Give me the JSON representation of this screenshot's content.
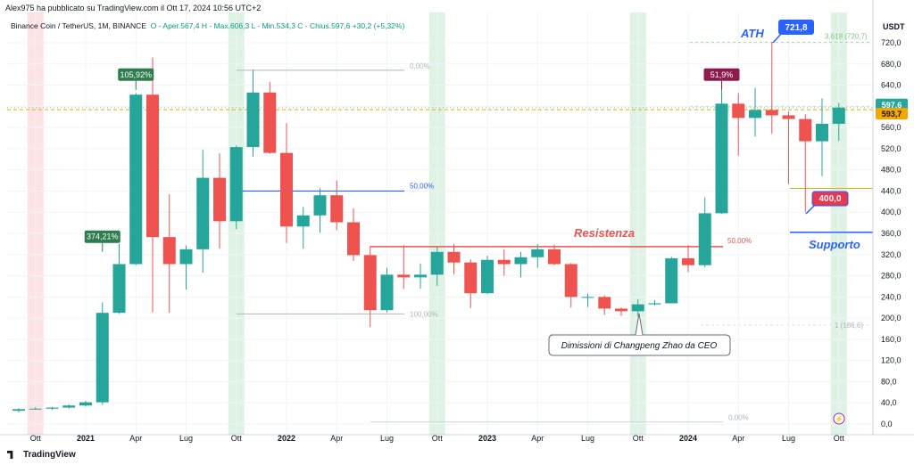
{
  "header": {
    "published_by": "Alex975 ha pubblicato su TradingView.com il Ott 17, 2024 10:56 UTC+2",
    "symbol": "Binance Coin / TetherUS, 1M, BINANCE",
    "ohlc_line": "O - Aper.567,4  H - Max.606,3  L - Min.534,3  C - Chius.597,6  +30,2 (+5,32%)",
    "currency": "USDT"
  },
  "brand": "TradingView",
  "colors": {
    "up": "#26a69a",
    "down": "#ef5350",
    "blue": "#2962ff",
    "green_band": "#dff3e4",
    "red_band": "#fde3e3"
  },
  "chart_data": {
    "type": "candlestick",
    "timeframe": "1M",
    "ylim": [
      0,
      760
    ],
    "y_ticks": [
      0,
      40,
      80,
      120,
      160,
      200,
      240,
      280,
      320,
      360,
      400,
      440,
      480,
      520,
      560,
      600,
      640,
      680,
      720
    ],
    "y_tick_labels": [
      "0,0",
      "40,0",
      "80,0",
      "120,0",
      "160,0",
      "200,0",
      "240,0",
      "280,0",
      "320,0",
      "360,0",
      "400,0",
      "440,0",
      "480,0",
      "520,0",
      "560,0",
      "600,0",
      "640,0",
      "680,0",
      "720,0"
    ],
    "x_ticks": [
      {
        "i": 1,
        "label": "Ott"
      },
      {
        "i": 4,
        "label": "2021"
      },
      {
        "i": 7,
        "label": "Apr"
      },
      {
        "i": 10,
        "label": "Lug"
      },
      {
        "i": 13,
        "label": "Ott"
      },
      {
        "i": 16,
        "label": "2022"
      },
      {
        "i": 19,
        "label": "Apr"
      },
      {
        "i": 22,
        "label": "Lug"
      },
      {
        "i": 25,
        "label": "Ott"
      },
      {
        "i": 28,
        "label": "2023"
      },
      {
        "i": 31,
        "label": "Apr"
      },
      {
        "i": 34,
        "label": "Lug"
      },
      {
        "i": 37,
        "label": "Ott"
      },
      {
        "i": 40,
        "label": "2024"
      },
      {
        "i": 43,
        "label": "Apr"
      },
      {
        "i": 46,
        "label": "Lug"
      },
      {
        "i": 49,
        "label": "Ott"
      }
    ],
    "candles": [
      {
        "o": 25,
        "h": 30,
        "l": 22,
        "c": 28
      },
      {
        "o": 28,
        "h": 32,
        "l": 27,
        "c": 29
      },
      {
        "o": 29,
        "h": 32,
        "l": 27,
        "c": 31
      },
      {
        "o": 31,
        "h": 37,
        "l": 29,
        "c": 35
      },
      {
        "o": 35,
        "h": 44,
        "l": 33,
        "c": 41
      },
      {
        "o": 41,
        "h": 230,
        "l": 36,
        "c": 210
      },
      {
        "o": 210,
        "h": 340,
        "l": 208,
        "c": 302
      },
      {
        "o": 302,
        "h": 625,
        "l": 300,
        "c": 622
      },
      {
        "o": 622,
        "h": 692,
        "l": 211,
        "c": 353
      },
      {
        "o": 353,
        "h": 434,
        "l": 210,
        "c": 302
      },
      {
        "o": 302,
        "h": 337,
        "l": 254,
        "c": 330
      },
      {
        "o": 330,
        "h": 518,
        "l": 286,
        "c": 465
      },
      {
        "o": 465,
        "h": 511,
        "l": 331,
        "c": 383
      },
      {
        "o": 383,
        "h": 526,
        "l": 368,
        "c": 523
      },
      {
        "o": 523,
        "h": 669,
        "l": 505,
        "c": 626
      },
      {
        "o": 626,
        "h": 646,
        "l": 510,
        "c": 512
      },
      {
        "o": 512,
        "h": 568,
        "l": 342,
        "c": 373
      },
      {
        "o": 373,
        "h": 410,
        "l": 331,
        "c": 394
      },
      {
        "o": 394,
        "h": 445,
        "l": 361,
        "c": 432
      },
      {
        "o": 432,
        "h": 460,
        "l": 366,
        "c": 381
      },
      {
        "o": 381,
        "h": 407,
        "l": 308,
        "c": 319
      },
      {
        "o": 319,
        "h": 336,
        "l": 183,
        "c": 215
      },
      {
        "o": 215,
        "h": 295,
        "l": 211,
        "c": 282
      },
      {
        "o": 282,
        "h": 338,
        "l": 255,
        "c": 277
      },
      {
        "o": 277,
        "h": 303,
        "l": 256,
        "c": 282
      },
      {
        "o": 282,
        "h": 334,
        "l": 261,
        "c": 325
      },
      {
        "o": 325,
        "h": 340,
        "l": 283,
        "c": 305
      },
      {
        "o": 305,
        "h": 311,
        "l": 219,
        "c": 247
      },
      {
        "o": 247,
        "h": 318,
        "l": 245,
        "c": 310
      },
      {
        "o": 310,
        "h": 330,
        "l": 280,
        "c": 302
      },
      {
        "o": 302,
        "h": 325,
        "l": 277,
        "c": 315
      },
      {
        "o": 315,
        "h": 340,
        "l": 295,
        "c": 330
      },
      {
        "o": 330,
        "h": 339,
        "l": 300,
        "c": 302
      },
      {
        "o": 302,
        "h": 304,
        "l": 220,
        "c": 240
      },
      {
        "o": 240,
        "h": 246,
        "l": 221,
        "c": 240
      },
      {
        "o": 240,
        "h": 243,
        "l": 206,
        "c": 218
      },
      {
        "o": 218,
        "h": 220,
        "l": 204,
        "c": 213
      },
      {
        "o": 213,
        "h": 236,
        "l": 203,
        "c": 226
      },
      {
        "o": 226,
        "h": 234,
        "l": 224,
        "c": 228
      },
      {
        "o": 228,
        "h": 316,
        "l": 228,
        "c": 313
      },
      {
        "o": 313,
        "h": 338,
        "l": 287,
        "c": 300
      },
      {
        "o": 300,
        "h": 428,
        "l": 296,
        "c": 398
      },
      {
        "o": 398,
        "h": 645,
        "l": 397,
        "c": 605
      },
      {
        "o": 605,
        "h": 625,
        "l": 507,
        "c": 578
      },
      {
        "o": 578,
        "h": 635,
        "l": 543,
        "c": 593
      },
      {
        "o": 593,
        "h": 721.8,
        "l": 548,
        "c": 583
      },
      {
        "o": 583,
        "h": 590,
        "l": 453,
        "c": 576
      },
      {
        "o": 576,
        "h": 585,
        "l": 400,
        "c": 534
      },
      {
        "o": 534,
        "h": 615,
        "l": 468,
        "c": 567
      },
      {
        "o": 567,
        "h": 606.3,
        "l": 534.3,
        "c": 597.6
      }
    ],
    "bands": [
      {
        "i": 1,
        "color": "red"
      },
      {
        "i": 13,
        "color": "green"
      },
      {
        "i": 25,
        "color": "green"
      },
      {
        "i": 37,
        "color": "green"
      },
      {
        "i": 49,
        "color": "green"
      }
    ],
    "price_labels": {
      "last": {
        "value": "597,6",
        "price": 597.6,
        "color": "#26a69a"
      },
      "orange": {
        "value": "593,7",
        "price": 593.7,
        "color": "#f7a600"
      }
    },
    "horizontal_lines": {
      "resistance": {
        "price": 335,
        "label": "Resistenza"
      },
      "support": {
        "price": 362,
        "label": "Supporto"
      },
      "fib_50_blue": {
        "price": 440,
        "label": "50,00%"
      },
      "fib_0": {
        "price": 668,
        "label": "0,00%"
      },
      "fib_100": {
        "price": 208,
        "label": "100,00%"
      },
      "fib2_0": {
        "price": 4,
        "label": "0,00%"
      },
      "fib2_50": {
        "price": 335,
        "label": "50,00%"
      },
      "fib2_100": {
        "price": 187,
        "label": "1 (186,6)"
      },
      "fib2_top": {
        "price": 720.7,
        "label": "3,618 (720,7)"
      }
    },
    "callouts": {
      "pct_374": {
        "i": 5,
        "price": 342,
        "label": "374,21%"
      },
      "pct_105": {
        "i": 7,
        "price": 648,
        "label": "105,92%"
      },
      "pct_51": {
        "i": 42,
        "price": 648,
        "label": "51,9%"
      },
      "ath_value": "721,8",
      "ath_text": "ATH",
      "low_value": "400,0",
      "note": "Dimissioni di Changpeng Zhao da CEO"
    }
  }
}
